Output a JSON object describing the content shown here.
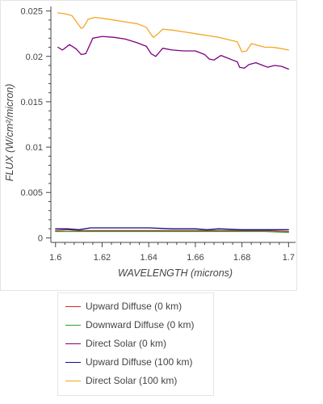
{
  "chart_data": {
    "type": "line",
    "xlabel": "WAVELENGTH (microns)",
    "ylabel": "FLUX (W/cm²/micron)",
    "xlim": [
      1.598,
      1.703
    ],
    "ylim": [
      -0.0005,
      0.0255
    ],
    "xticks": [
      1.6,
      1.62,
      1.64,
      1.66,
      1.68,
      1.7
    ],
    "xtick_labels": [
      "1.6",
      "1.62",
      "1.64",
      "1.66",
      "1.68",
      "1.7"
    ],
    "yticks": [
      0,
      0.005,
      0.01,
      0.015,
      0.02,
      0.025
    ],
    "ytick_labels": [
      "0",
      "0.005",
      "0.01",
      "0.015",
      "0.02",
      "0.025"
    ],
    "grid": false,
    "legend_position": "bottom",
    "series": [
      {
        "name": "Upward Diffuse (0 km)",
        "color": "#d62728",
        "x": [
          1.6,
          1.605,
          1.61,
          1.62,
          1.63,
          1.64,
          1.65,
          1.66,
          1.67,
          1.68,
          1.69,
          1.7
        ],
        "y": [
          0.0008,
          0.0009,
          0.0008,
          0.0008,
          0.0008,
          0.0008,
          0.0008,
          0.0008,
          0.0008,
          0.0008,
          0.0008,
          0.0007
        ]
      },
      {
        "name": "Downward Diffuse (0 km)",
        "color": "#2ca02c",
        "x": [
          1.6,
          1.605,
          1.61,
          1.62,
          1.63,
          1.64,
          1.65,
          1.66,
          1.67,
          1.68,
          1.69,
          1.7
        ],
        "y": [
          0.0007,
          0.0007,
          0.0007,
          0.0007,
          0.0007,
          0.0007,
          0.0007,
          0.0007,
          0.0007,
          0.0007,
          0.0007,
          0.0006
        ]
      },
      {
        "name": "Direct Solar (0 km)",
        "color": "#800080",
        "x": [
          1.601,
          1.603,
          1.606,
          1.609,
          1.611,
          1.613,
          1.616,
          1.62,
          1.625,
          1.63,
          1.635,
          1.639,
          1.641,
          1.643,
          1.646,
          1.65,
          1.655,
          1.66,
          1.664,
          1.666,
          1.668,
          1.671,
          1.674,
          1.676,
          1.678,
          1.679,
          1.681,
          1.683,
          1.686,
          1.689,
          1.691,
          1.694,
          1.697,
          1.7
        ],
        "y": [
          0.021,
          0.0207,
          0.0213,
          0.0208,
          0.0202,
          0.0203,
          0.022,
          0.0222,
          0.0221,
          0.0219,
          0.0215,
          0.0211,
          0.0203,
          0.02,
          0.0209,
          0.0207,
          0.0206,
          0.0206,
          0.0202,
          0.0197,
          0.0196,
          0.0201,
          0.0198,
          0.0196,
          0.0194,
          0.0188,
          0.0187,
          0.0191,
          0.0193,
          0.019,
          0.0188,
          0.019,
          0.0189,
          0.0186
        ]
      },
      {
        "name": "Upward Diffuse (100 km)",
        "color": "#0d0d8c",
        "x": [
          1.6,
          1.605,
          1.61,
          1.615,
          1.62,
          1.63,
          1.64,
          1.65,
          1.66,
          1.665,
          1.67,
          1.68,
          1.69,
          1.7
        ],
        "y": [
          0.001,
          0.001,
          0.0009,
          0.0011,
          0.0011,
          0.0011,
          0.0011,
          0.001,
          0.001,
          0.0009,
          0.001,
          0.0009,
          0.0009,
          0.0009
        ]
      },
      {
        "name": "Direct Solar (100 km)",
        "color": "#f5a623",
        "x": [
          1.601,
          1.604,
          1.607,
          1.609,
          1.611,
          1.612,
          1.614,
          1.617,
          1.62,
          1.625,
          1.63,
          1.635,
          1.639,
          1.641,
          1.642,
          1.644,
          1.646,
          1.65,
          1.655,
          1.66,
          1.665,
          1.67,
          1.675,
          1.678,
          1.68,
          1.682,
          1.684,
          1.687,
          1.69,
          1.693,
          1.696,
          1.7
        ],
        "y": [
          0.0248,
          0.0247,
          0.0245,
          0.0238,
          0.0231,
          0.0232,
          0.0241,
          0.0243,
          0.0242,
          0.024,
          0.0238,
          0.0236,
          0.0232,
          0.0224,
          0.0221,
          0.0225,
          0.023,
          0.0229,
          0.0227,
          0.0225,
          0.0223,
          0.0221,
          0.0218,
          0.0216,
          0.0205,
          0.0206,
          0.0214,
          0.0212,
          0.021,
          0.021,
          0.0209,
          0.0207
        ]
      }
    ]
  }
}
